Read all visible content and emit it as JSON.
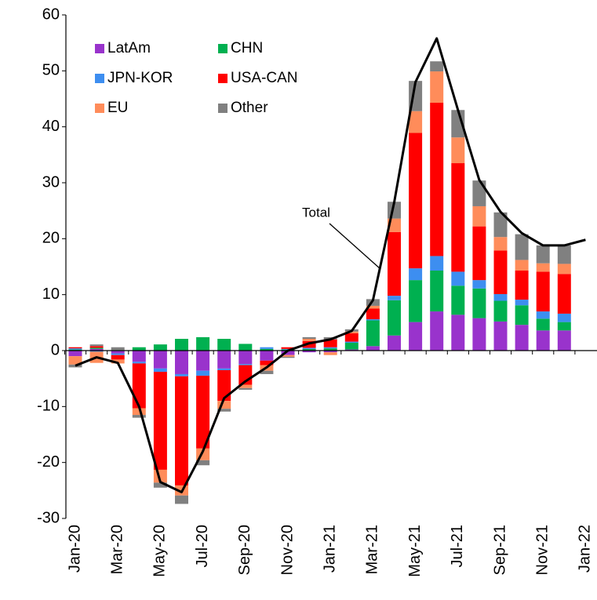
{
  "chart_data": {
    "type": "bar",
    "categories": [
      "Jan-20",
      null,
      "Mar-20",
      null,
      "May-20",
      null,
      "Jul-20",
      null,
      "Sep-20",
      null,
      "Nov-20",
      null,
      "Jan-21",
      null,
      "Mar-21",
      null,
      "May-21",
      null,
      "Jul-21",
      null,
      "Sep-21",
      null,
      "Nov-21",
      null,
      "Jan-22"
    ],
    "series": [
      {
        "name": "LatAm",
        "color": "#9933cc",
        "values": [
          -1.0,
          0.3,
          -0.5,
          -2.0,
          -3.2,
          -4.2,
          -3.6,
          -3.2,
          -2.4,
          -1.8,
          -0.8,
          -0.3,
          -0.3,
          0.2,
          0.8,
          2.7,
          5.1,
          7.0,
          6.4,
          5.8,
          5.2,
          4.6,
          3.6,
          3.6,
          null
        ]
      },
      {
        "name": "CHN",
        "color": "#00b050",
        "values": [
          0.2,
          0.2,
          0.1,
          0.6,
          1.1,
          2.1,
          2.4,
          2.1,
          1.2,
          0.3,
          0.2,
          0.3,
          0.4,
          1.2,
          4.6,
          6.3,
          7.5,
          7.3,
          5.2,
          5.3,
          3.7,
          3.5,
          2.1,
          1.5,
          null
        ]
      },
      {
        "name": "JPN-KOR",
        "color": "#3d8ef0",
        "values": [
          0.2,
          -0.2,
          -0.3,
          -0.3,
          -0.6,
          -0.4,
          -0.9,
          -0.3,
          -0.2,
          0.3,
          0.1,
          0.2,
          0.2,
          0.2,
          0.2,
          0.8,
          2.1,
          2.6,
          2.5,
          1.5,
          1.2,
          1.0,
          1.3,
          1.5,
          null
        ]
      },
      {
        "name": "USA-CAN",
        "color": "#ff0000",
        "values": [
          0.2,
          0.3,
          -0.8,
          -8.0,
          -17.5,
          -19.5,
          -13.0,
          -5.5,
          -3.5,
          -0.8,
          0.3,
          1.2,
          1.4,
          1.5,
          1.9,
          11.4,
          24.2,
          27.4,
          19.4,
          9.6,
          7.8,
          5.2,
          7.1,
          7.1,
          null
        ]
      },
      {
        "name": "EU",
        "color": "#ff8c5a",
        "values": [
          -1.5,
          -2.0,
          -0.7,
          -1.2,
          -2.3,
          -1.8,
          -2.1,
          -1.4,
          -0.6,
          -1.0,
          -0.3,
          0.4,
          -0.5,
          0.3,
          0.5,
          2.4,
          3.9,
          5.6,
          4.6,
          3.6,
          2.4,
          1.9,
          1.5,
          1.8,
          null
        ]
      },
      {
        "name": "Other",
        "color": "#808080",
        "values": [
          -0.5,
          0.3,
          0.5,
          -0.5,
          -0.9,
          -1.5,
          -0.9,
          -0.5,
          -0.3,
          -0.6,
          -0.2,
          0.3,
          0.4,
          0.4,
          1.2,
          3.0,
          5.4,
          1.8,
          4.9,
          4.6,
          4.4,
          4.6,
          3.2,
          3.3,
          null
        ]
      }
    ],
    "line": {
      "name": "Total",
      "color": "#000000",
      "values": [
        -2.7,
        -1.2,
        -2.2,
        -10,
        -23.5,
        -25.3,
        -18,
        -8.5,
        -5.5,
        -3,
        0,
        1.3,
        2,
        3.5,
        9,
        26.5,
        48,
        55.8,
        43,
        30.5,
        24.8,
        21,
        18.8,
        18.8,
        19.8
      ]
    },
    "ylim": [
      -30,
      60
    ],
    "yticks": [
      -30,
      -20,
      -10,
      0,
      10,
      20,
      30,
      40,
      50,
      60
    ],
    "legend": "upper-left"
  }
}
